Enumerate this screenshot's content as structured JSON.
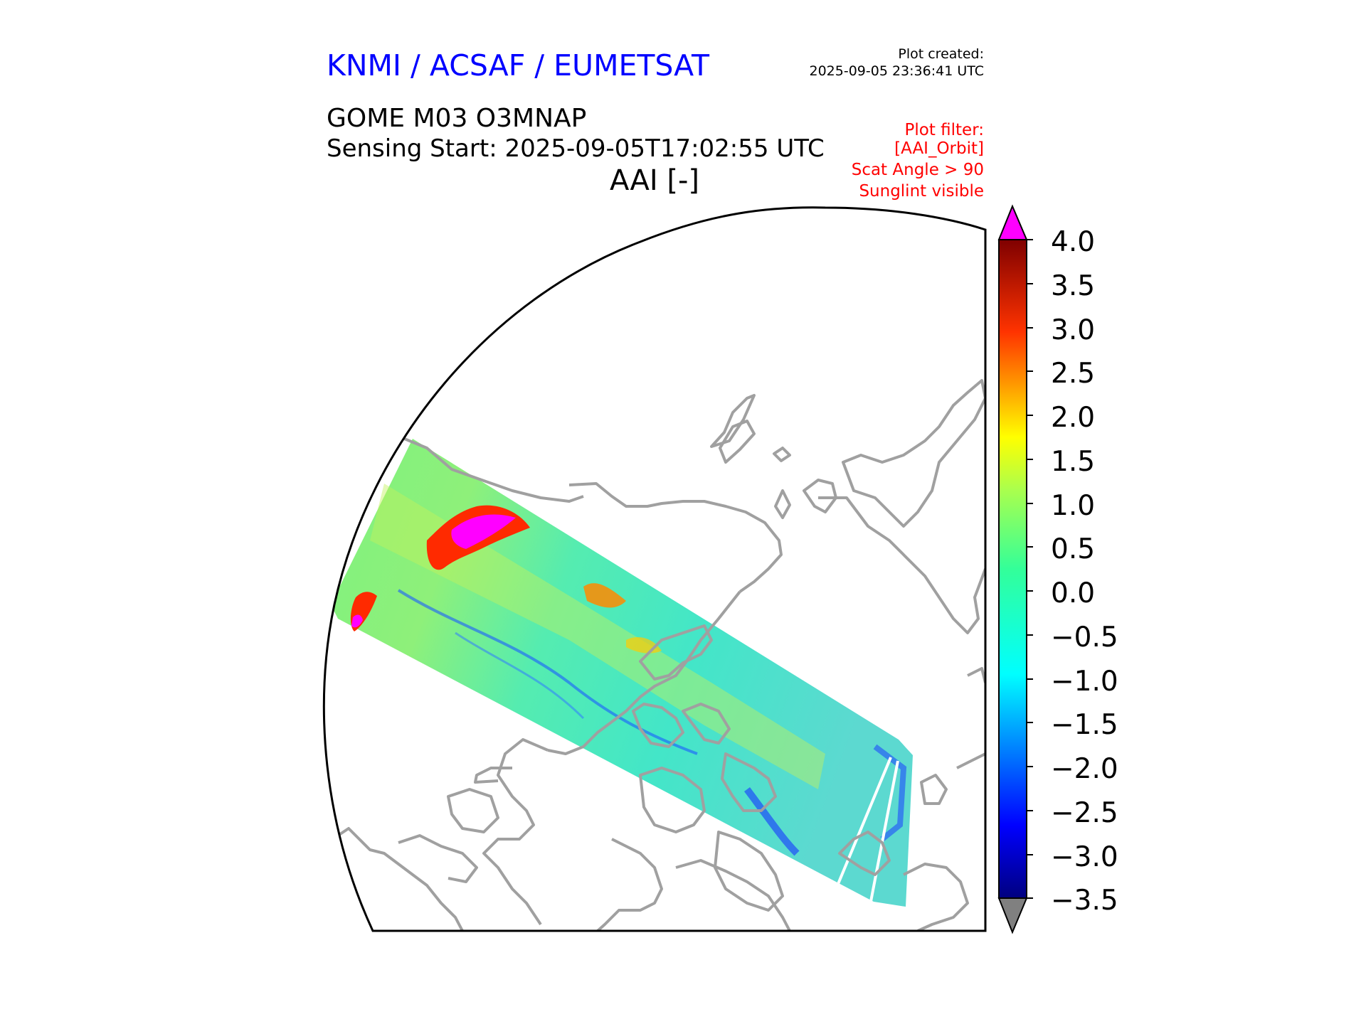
{
  "header": {
    "organization": "KNMI / ACSAF / EUMETSAT",
    "plot_created_label": "Plot created:",
    "plot_created_time": "2025-09-05 23:36:41 UTC",
    "product": "GOME M03 O3MNAP",
    "sensing_start": "Sensing Start: 2025-09-05T17:02:55 UTC",
    "variable": "AAI [-]"
  },
  "plot_filter": {
    "lines": [
      "Plot filter:",
      "[AAI_Orbit]",
      "Scat Angle > 90",
      "Sunglint visible"
    ]
  },
  "colorbar": {
    "ticks": [
      "4.0",
      "3.5",
      "3.0",
      "2.5",
      "2.0",
      "1.5",
      "1.0",
      "0.5",
      "0.0",
      "−0.5",
      "−1.0",
      "−1.5",
      "−2.0",
      "−2.5",
      "−3.0",
      "−3.5"
    ],
    "min": -3.5,
    "max": 4.0,
    "over_color": "#ff00ff",
    "under_color": "#808080",
    "colormap": "jet"
  },
  "map": {
    "projection": "north-polar-stereographic",
    "coastline_color": "#a0a0a0",
    "swath_colormap": "jet"
  }
}
